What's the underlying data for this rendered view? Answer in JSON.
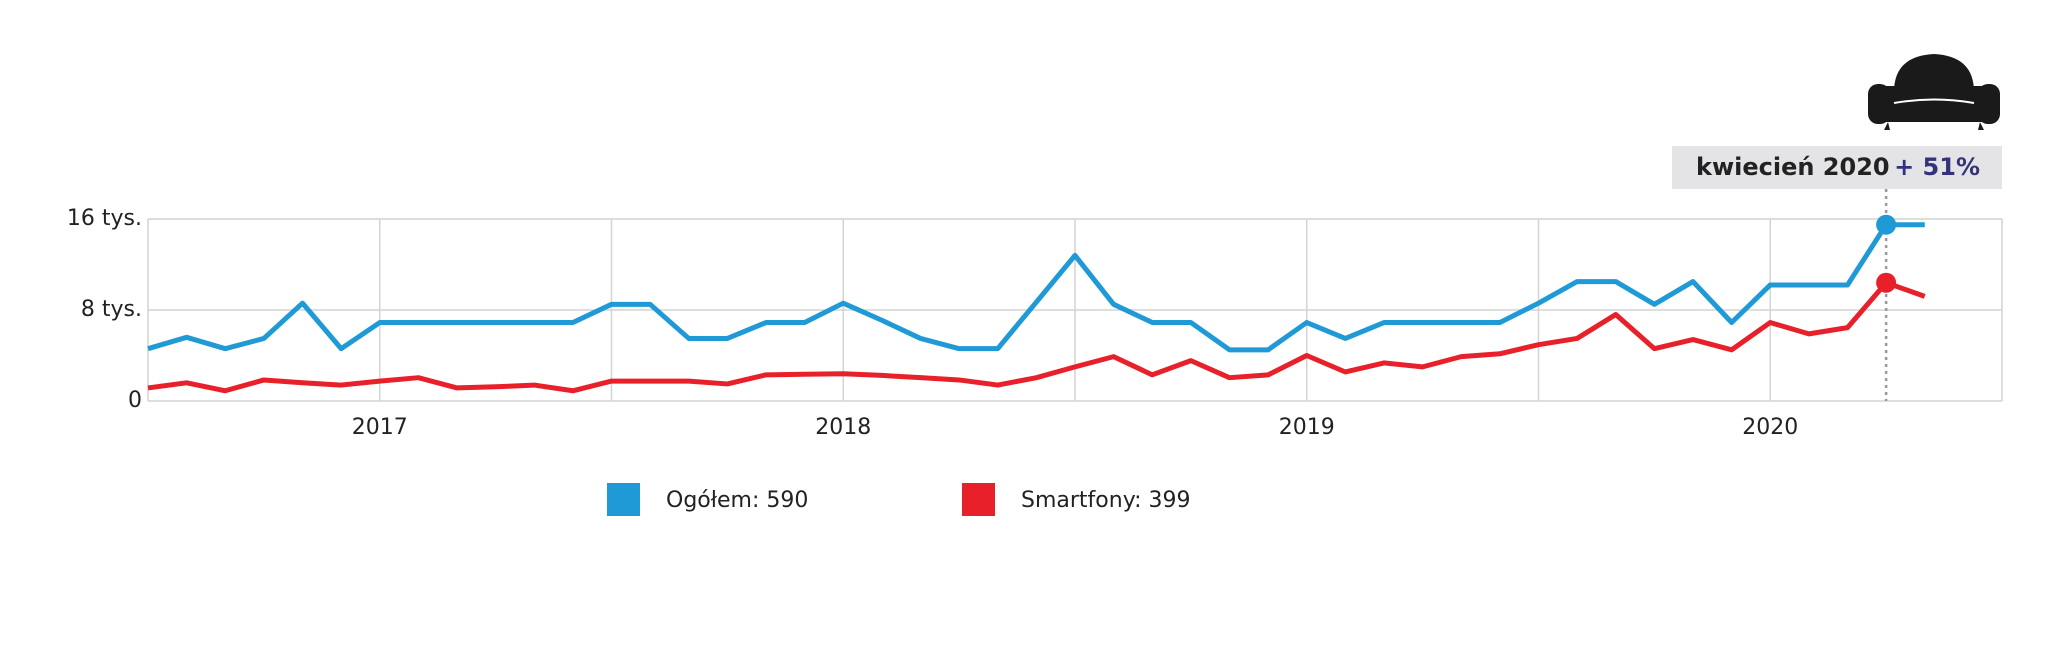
{
  "chart_data": {
    "type": "line",
    "x": [
      2016.5,
      2016.5833,
      2016.6667,
      2016.75,
      2016.8333,
      2016.9167,
      2017,
      2017.0833,
      2017.1667,
      2017.25,
      2017.3333,
      2017.4167,
      2017.5,
      2017.5833,
      2017.6667,
      2017.75,
      2017.8333,
      2017.9167,
      2018,
      2018.0833,
      2018.1667,
      2018.25,
      2018.3333,
      2018.4167,
      2018.5,
      2018.5833,
      2018.6667,
      2018.75,
      2018.8333,
      2018.9167,
      2019,
      2019.0833,
      2019.1667,
      2019.25,
      2019.3333,
      2019.4167,
      2019.5,
      2019.5833,
      2019.6667,
      2019.75,
      2019.8333,
      2019.9167,
      2020,
      2020.0833,
      2020.1667,
      2020.25,
      2020.3333
    ],
    "series": [
      {
        "name": "Ogółem: 590",
        "color": "#1f9ad6",
        "values": [
          4600,
          5600,
          4600,
          5500,
          8600,
          4600,
          6900,
          6900,
          6900,
          6900,
          6900,
          6900,
          8500,
          8500,
          5500,
          5500,
          6900,
          6900,
          8600,
          7100,
          5500,
          4600,
          4600,
          8700,
          12800,
          8500,
          6900,
          6900,
          4500,
          4500,
          6900,
          5500,
          6900,
          6900,
          6900,
          6900,
          8600,
          10500,
          10500,
          8500,
          10500,
          6900,
          10200,
          10200,
          10200,
          15500,
          15500
        ]
      },
      {
        "name": "Smartfony: 399",
        "color": "#e8202a",
        "values": [
          1150,
          1600,
          900,
          1850,
          1600,
          1400,
          1750,
          2050,
          1150,
          1250,
          1400,
          900,
          1750,
          1750,
          1750,
          1500,
          2300,
          2350,
          2400,
          2250,
          2050,
          1850,
          1400,
          2050,
          3000,
          3900,
          2300,
          3550,
          2050,
          2300,
          4000,
          2550,
          3350,
          3000,
          3900,
          4150,
          4950,
          5500,
          7600,
          4600,
          5400,
          4500,
          6900,
          5900,
          6450,
          10400,
          9200
        ]
      }
    ],
    "xlim": [
      2016.5,
      2020.5
    ],
    "xticks": [
      2017,
      2018,
      2019,
      2020
    ],
    "xgrid": [
      2016.5,
      2017,
      2017.5,
      2018,
      2018.5,
      2019,
      2019.5,
      2020,
      2020.5
    ],
    "ylim": [
      0,
      16000
    ],
    "yticks": [
      0,
      {
        "value": 8000,
        "label": "8 tys."
      },
      {
        "value": 16000,
        "label": "16 tys."
      }
    ],
    "grid": true,
    "annotation": {
      "x": 2020.25,
      "label": "kwiecień 2020",
      "change": "+ 51%"
    }
  }
}
